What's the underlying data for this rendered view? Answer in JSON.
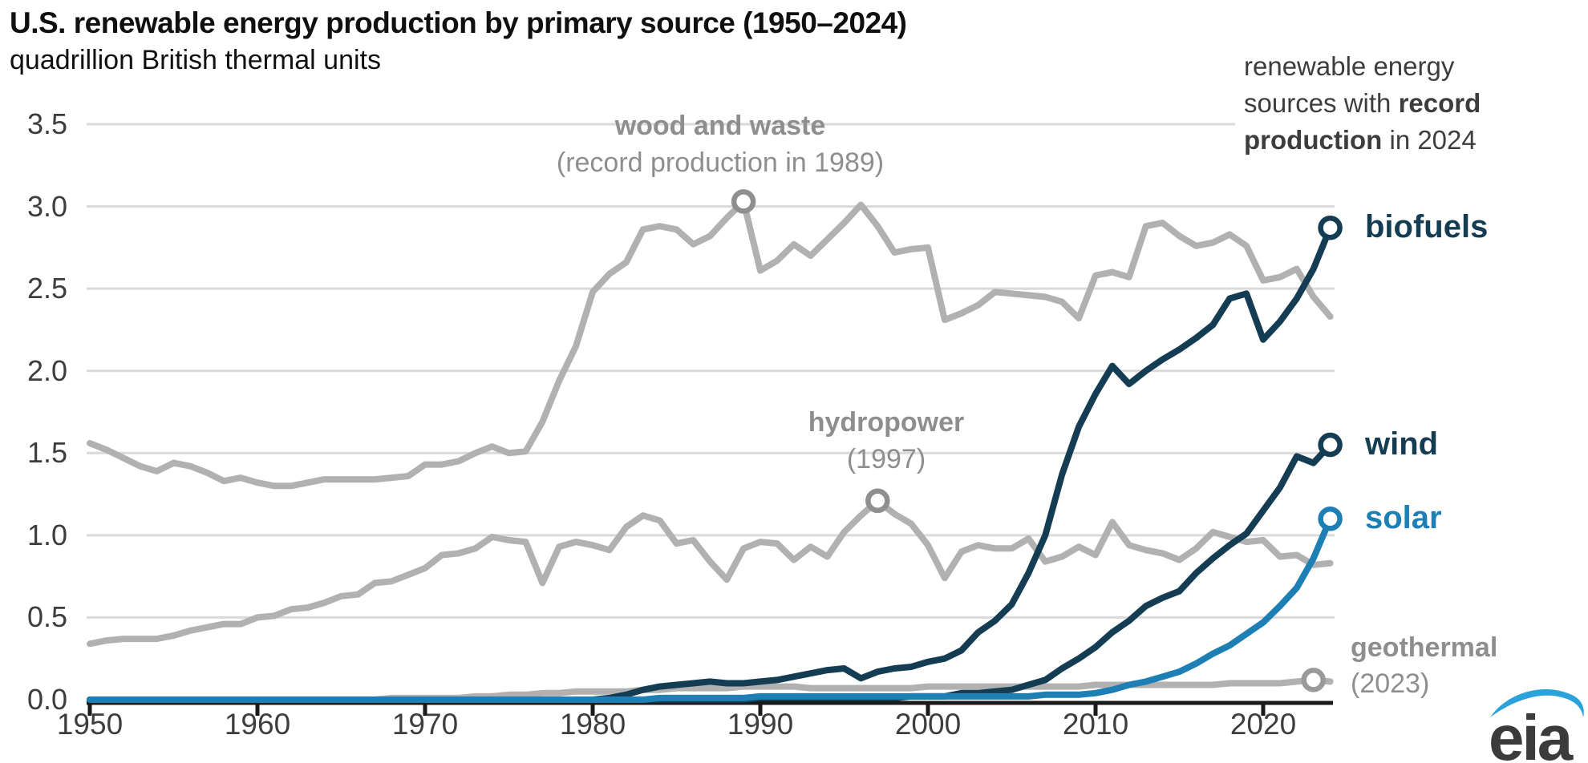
{
  "header": {
    "title": "U.S. renewable energy production by primary source (1950–2024)",
    "subtitle": "quadrillion British thermal units"
  },
  "note": {
    "line1": "renewable energy",
    "line2_regular": "sources with ",
    "line2_bold": "record",
    "line3_bold": "production",
    "line3_regular": " in 2024"
  },
  "annotations": {
    "wood_sub": "(record production in 1989)",
    "hydro_sub": "(1997)",
    "geo_sub": "(2023)"
  },
  "logo": {
    "text": "eia"
  },
  "colors": {
    "gray_series": "#b1b1b1",
    "navy_series": "#143d54",
    "blue_series": "#1d7fb4",
    "gray_marker": "#8f8f8f",
    "grid": "#dadada",
    "axis": "#1a1a1a",
    "annotation_text": "#8e8e8e",
    "tick_text": "#3d3d3d",
    "logo_blue": "#2aa2dc"
  },
  "chart_data": {
    "type": "line",
    "title": "U.S. renewable energy production by primary source (1950–2024)",
    "ylabel": "quadrillion British thermal units",
    "ylim": [
      0,
      3.5
    ],
    "yticks": [
      0.0,
      0.5,
      1.0,
      1.5,
      2.0,
      2.5,
      3.0,
      3.5
    ],
    "xticks": [
      1950,
      1960,
      1970,
      1980,
      1990,
      2000,
      2010,
      2020
    ],
    "year_start": 1950,
    "year_end": 2024,
    "grid": true,
    "legend_position": "end-of-line labels",
    "series": [
      {
        "id": "wood-and-waste",
        "name": "wood and waste",
        "color": "#b1b1b1",
        "marker": {
          "year": 1989,
          "value": 3.03,
          "color": "#8f8f8f"
        },
        "values": [
          1.56,
          1.52,
          1.47,
          1.42,
          1.39,
          1.44,
          1.42,
          1.38,
          1.33,
          1.35,
          1.32,
          1.3,
          1.3,
          1.32,
          1.34,
          1.34,
          1.34,
          1.34,
          1.35,
          1.36,
          1.43,
          1.43,
          1.45,
          1.5,
          1.54,
          1.5,
          1.51,
          1.69,
          1.94,
          2.15,
          2.48,
          2.59,
          2.66,
          2.86,
          2.88,
          2.86,
          2.77,
          2.82,
          2.93,
          3.03,
          2.61,
          2.67,
          2.77,
          2.7,
          2.8,
          2.9,
          3.01,
          2.88,
          2.72,
          2.74,
          2.75,
          2.31,
          2.35,
          2.4,
          2.48,
          2.47,
          2.46,
          2.45,
          2.42,
          2.32,
          2.58,
          2.6,
          2.57,
          2.88,
          2.9,
          2.82,
          2.76,
          2.78,
          2.83,
          2.76,
          2.55,
          2.57,
          2.62,
          2.45,
          2.33
        ]
      },
      {
        "id": "hydropower",
        "name": "hydropower",
        "color": "#b1b1b1",
        "marker": {
          "year": 1997,
          "value": 1.21,
          "color": "#8f8f8f"
        },
        "values": [
          0.34,
          0.36,
          0.37,
          0.37,
          0.37,
          0.39,
          0.42,
          0.44,
          0.46,
          0.46,
          0.5,
          0.51,
          0.55,
          0.56,
          0.59,
          0.63,
          0.64,
          0.71,
          0.72,
          0.76,
          0.8,
          0.88,
          0.89,
          0.92,
          0.99,
          0.97,
          0.96,
          0.71,
          0.93,
          0.96,
          0.94,
          0.91,
          1.05,
          1.12,
          1.09,
          0.95,
          0.97,
          0.84,
          0.73,
          0.92,
          0.96,
          0.95,
          0.85,
          0.93,
          0.87,
          1.02,
          1.12,
          1.21,
          1.13,
          1.07,
          0.94,
          0.74,
          0.9,
          0.94,
          0.92,
          0.92,
          0.98,
          0.84,
          0.87,
          0.93,
          0.88,
          1.08,
          0.94,
          0.91,
          0.89,
          0.85,
          0.92,
          1.02,
          0.99,
          0.96,
          0.97,
          0.87,
          0.88,
          0.82,
          0.83
        ]
      },
      {
        "id": "geothermal",
        "name": "geothermal",
        "color": "#b1b1b1",
        "marker": {
          "year": 2023,
          "value": 0.12,
          "color": "#9a9a9a"
        },
        "values": [
          0,
          0,
          0,
          0,
          0,
          0,
          0,
          0,
          0,
          0,
          0,
          0,
          0,
          0,
          0,
          0,
          0,
          0,
          0.01,
          0.01,
          0.01,
          0.01,
          0.01,
          0.02,
          0.02,
          0.03,
          0.03,
          0.04,
          0.04,
          0.05,
          0.05,
          0.05,
          0.05,
          0.06,
          0.06,
          0.07,
          0.07,
          0.07,
          0.07,
          0.08,
          0.08,
          0.08,
          0.08,
          0.07,
          0.07,
          0.07,
          0.07,
          0.07,
          0.07,
          0.07,
          0.08,
          0.08,
          0.08,
          0.08,
          0.08,
          0.08,
          0.08,
          0.08,
          0.08,
          0.08,
          0.09,
          0.09,
          0.09,
          0.09,
          0.09,
          0.09,
          0.09,
          0.09,
          0.1,
          0.1,
          0.1,
          0.1,
          0.11,
          0.12,
          0.11
        ]
      },
      {
        "id": "biofuels",
        "name": "biofuels",
        "color": "#143d54",
        "marker": {
          "year": 2024,
          "value": 2.87,
          "color": "#143d54"
        },
        "values": [
          0,
          0,
          0,
          0,
          0,
          0,
          0,
          0,
          0,
          0,
          0,
          0,
          0,
          0,
          0,
          0,
          0,
          0,
          0,
          0,
          0,
          0,
          0,
          0,
          0,
          0,
          0,
          0,
          0,
          0,
          0,
          0.01,
          0.03,
          0.06,
          0.08,
          0.09,
          0.1,
          0.11,
          0.1,
          0.1,
          0.11,
          0.12,
          0.14,
          0.16,
          0.18,
          0.19,
          0.13,
          0.17,
          0.19,
          0.2,
          0.23,
          0.25,
          0.3,
          0.41,
          0.48,
          0.58,
          0.77,
          1.0,
          1.37,
          1.66,
          1.86,
          2.03,
          1.92,
          2.0,
          2.07,
          2.13,
          2.2,
          2.28,
          2.44,
          2.47,
          2.19,
          2.3,
          2.44,
          2.62,
          2.87
        ]
      },
      {
        "id": "wind",
        "name": "wind",
        "color": "#143d54",
        "marker": {
          "year": 2024,
          "value": 1.55,
          "color": "#143d54"
        },
        "values": [
          0,
          0,
          0,
          0,
          0,
          0,
          0,
          0,
          0,
          0,
          0,
          0,
          0,
          0,
          0,
          0,
          0,
          0,
          0,
          0,
          0,
          0,
          0,
          0,
          0,
          0,
          0,
          0,
          0,
          0,
          0,
          0,
          0,
          0,
          0,
          0,
          0,
          0,
          0,
          0,
          0.01,
          0.01,
          0.01,
          0.01,
          0.01,
          0.01,
          0.01,
          0.01,
          0.01,
          0.02,
          0.02,
          0.02,
          0.04,
          0.04,
          0.05,
          0.06,
          0.09,
          0.12,
          0.19,
          0.25,
          0.32,
          0.41,
          0.48,
          0.57,
          0.62,
          0.66,
          0.77,
          0.86,
          0.94,
          1.01,
          1.15,
          1.29,
          1.48,
          1.44,
          1.55
        ]
      },
      {
        "id": "solar",
        "name": "solar",
        "color": "#1d7fb4",
        "marker": {
          "year": 2024,
          "value": 1.1,
          "color": "#1d7fb4"
        },
        "values": [
          0,
          0,
          0,
          0,
          0,
          0,
          0,
          0,
          0,
          0,
          0,
          0,
          0,
          0,
          0,
          0,
          0,
          0,
          0,
          0,
          0,
          0,
          0,
          0,
          0,
          0,
          0,
          0,
          0,
          0,
          0,
          0,
          0,
          0,
          0.01,
          0.01,
          0.01,
          0.01,
          0.01,
          0.01,
          0.02,
          0.02,
          0.02,
          0.02,
          0.02,
          0.02,
          0.02,
          0.02,
          0.02,
          0.02,
          0.02,
          0.02,
          0.02,
          0.02,
          0.02,
          0.02,
          0.02,
          0.03,
          0.03,
          0.03,
          0.04,
          0.06,
          0.09,
          0.11,
          0.14,
          0.17,
          0.22,
          0.28,
          0.33,
          0.4,
          0.47,
          0.57,
          0.68,
          0.86,
          1.1
        ]
      }
    ]
  }
}
